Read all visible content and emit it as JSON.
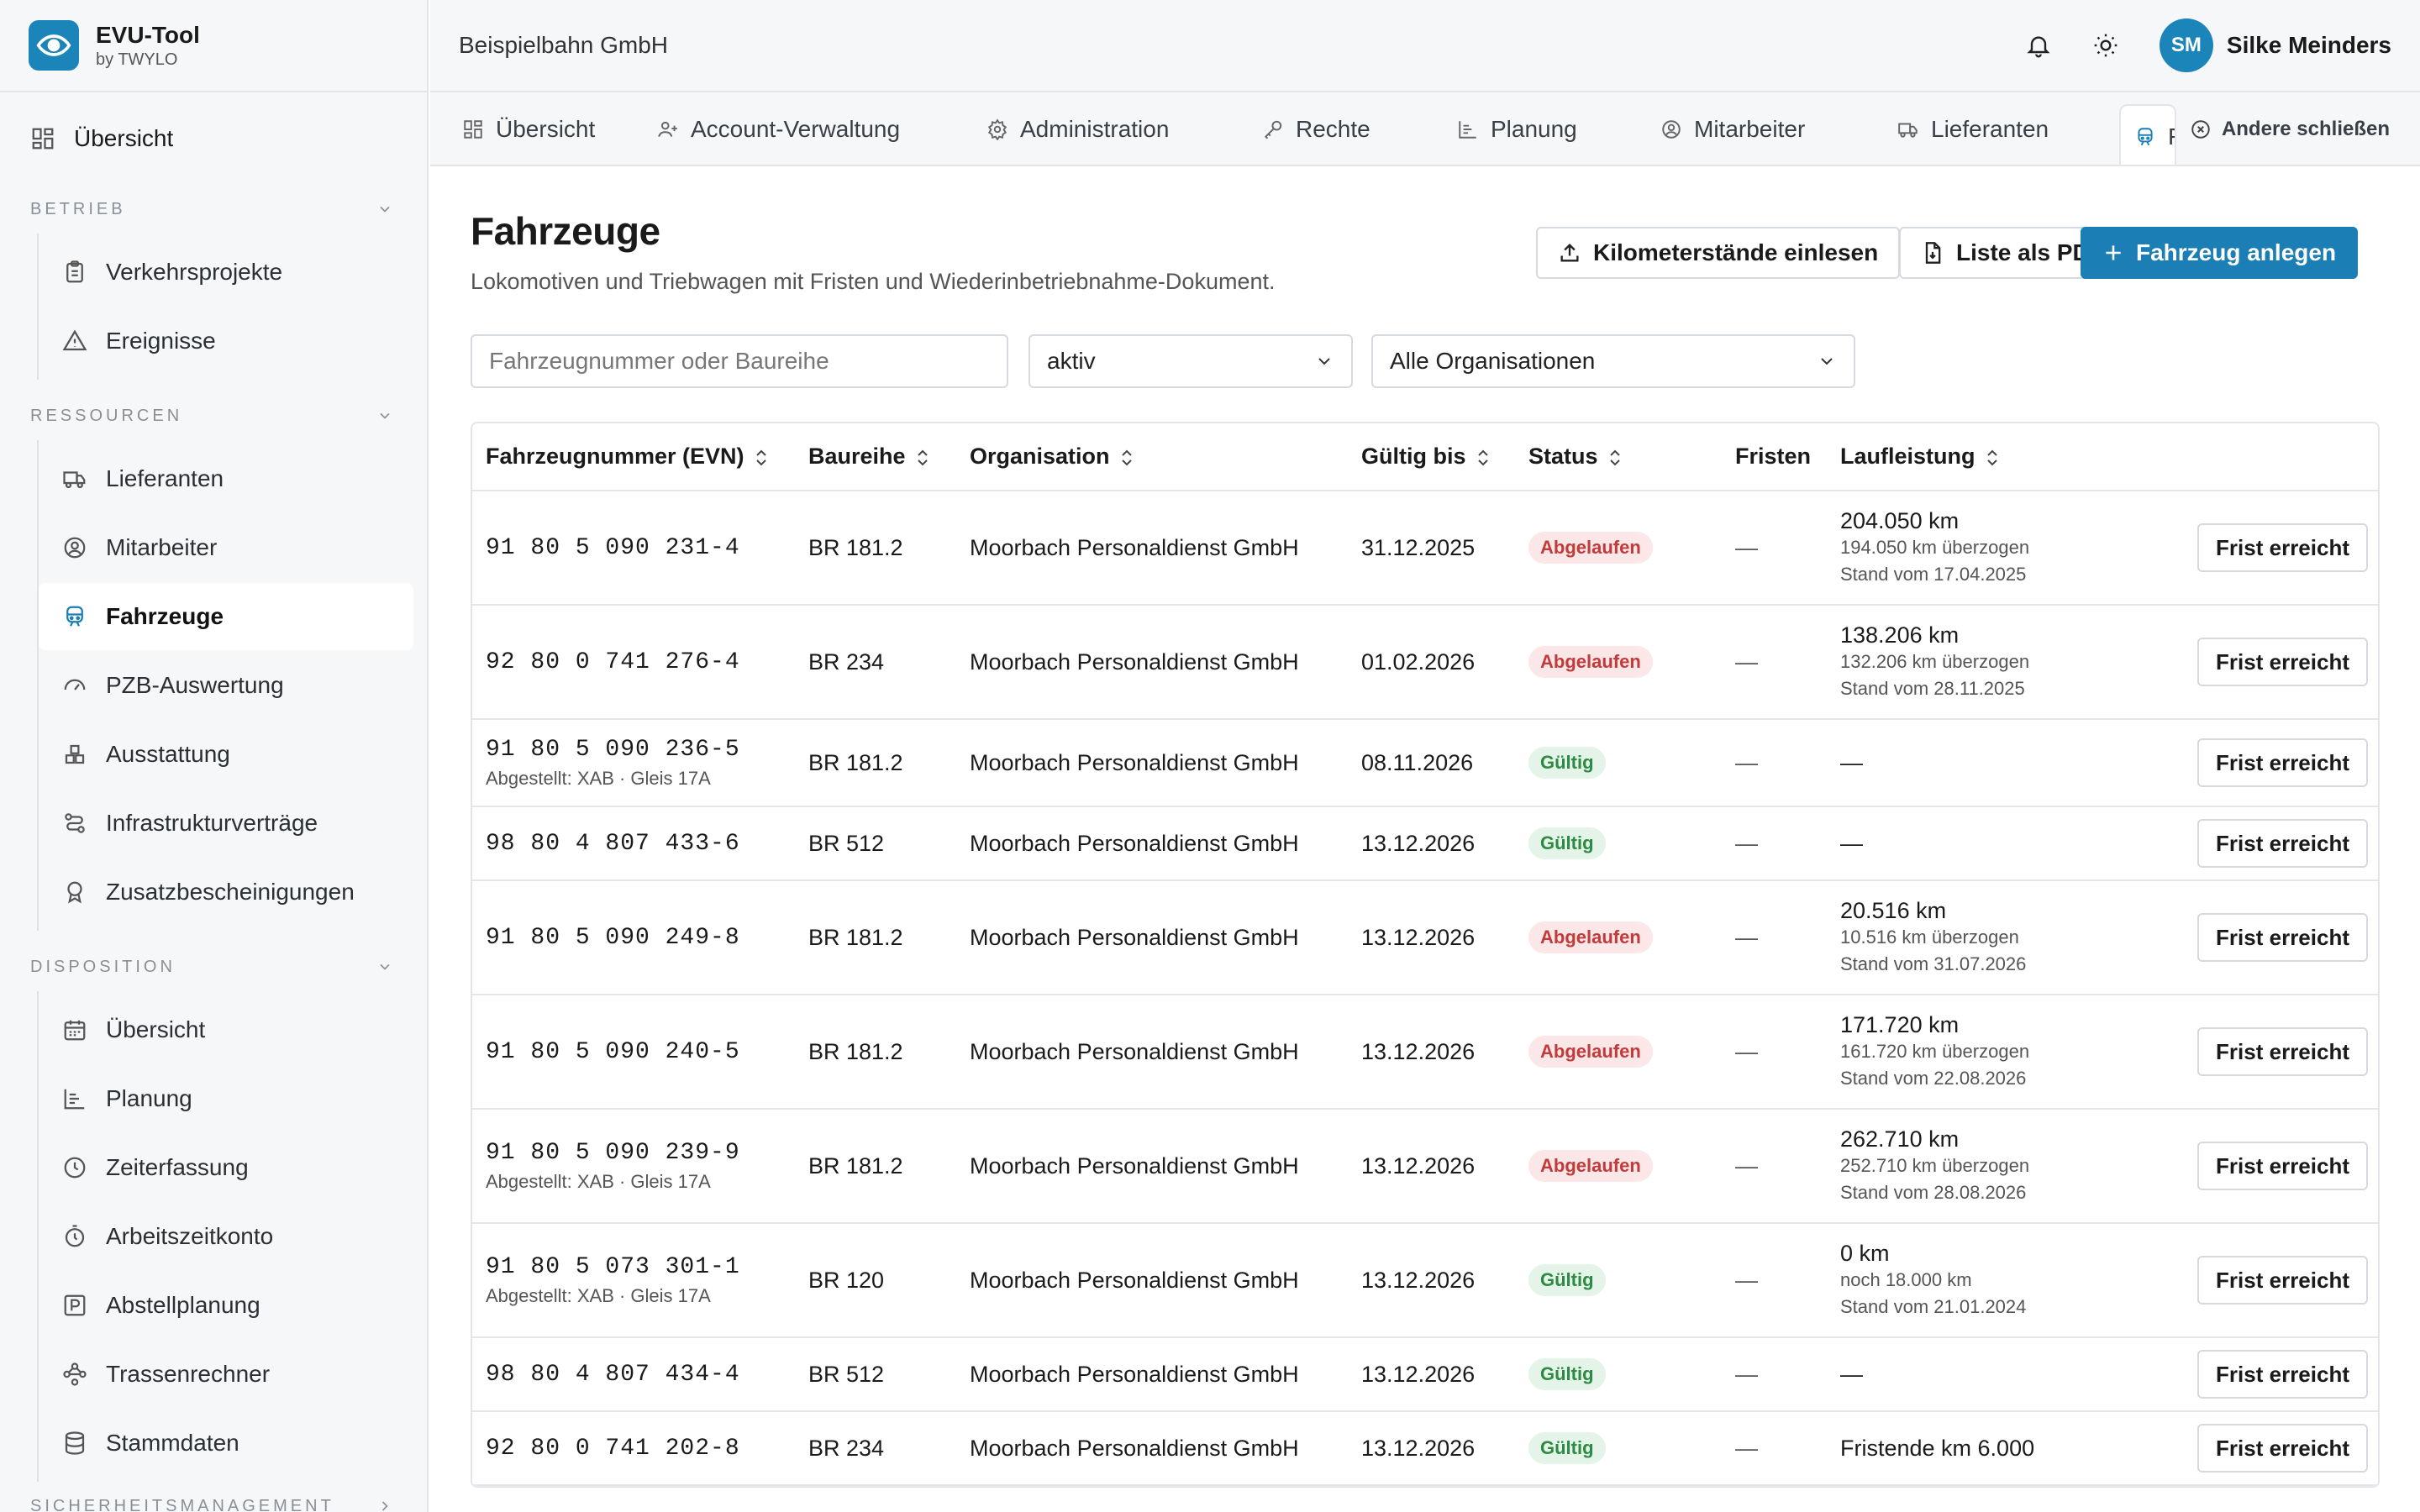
{
  "brand": {
    "name": "EVU-Tool",
    "sub": "by TWYLO"
  },
  "sidebar": {
    "top": {
      "label": "Übersicht"
    },
    "sections": [
      {
        "title": "Betrieb",
        "items": [
          {
            "label": "Verkehrsprojekte",
            "icon": "clipboard-icon"
          },
          {
            "label": "Ereignisse",
            "icon": "warning-icon"
          }
        ]
      },
      {
        "title": "Ressourcen",
        "items": [
          {
            "label": "Lieferanten",
            "icon": "truck-icon"
          },
          {
            "label": "Mitarbeiter",
            "icon": "user-circle-icon"
          },
          {
            "label": "Fahrzeuge",
            "icon": "train-icon"
          },
          {
            "label": "PZB-Auswertung",
            "icon": "gauge-icon"
          },
          {
            "label": "Ausstattung",
            "icon": "boxes-icon"
          },
          {
            "label": "Infrastrukturverträge",
            "icon": "route-icon"
          },
          {
            "label": "Zusatzbescheinigungen",
            "icon": "award-icon"
          }
        ]
      },
      {
        "title": "Disposition",
        "items": [
          {
            "label": "Übersicht",
            "icon": "calendar-icon"
          },
          {
            "label": "Planung",
            "icon": "gantt-icon"
          },
          {
            "label": "Zeiterfassung",
            "icon": "clock-icon"
          },
          {
            "label": "Arbeitszeitkonto",
            "icon": "timer-icon"
          },
          {
            "label": "Abstellplanung",
            "icon": "parking-icon"
          },
          {
            "label": "Trassenrechner",
            "icon": "waypoints-icon"
          },
          {
            "label": "Stammdaten",
            "icon": "database-icon"
          }
        ]
      },
      {
        "title": "Sicherheitsmanagement"
      }
    ]
  },
  "header": {
    "org": "Beispielbahn GmbH",
    "user_initials": "SM",
    "user_name": "Silke Meinders"
  },
  "tabs": [
    {
      "label": "Übersicht",
      "icon": "grid-icon"
    },
    {
      "label": "Account-Verwaltung",
      "icon": "users-icon"
    },
    {
      "label": "Administration",
      "icon": "gear-icon"
    },
    {
      "label": "Rechte",
      "icon": "key-icon"
    },
    {
      "label": "Planung",
      "icon": "gantt-icon"
    },
    {
      "label": "Mitarbeiter",
      "icon": "user-circle-icon"
    },
    {
      "label": "Lieferanten",
      "icon": "truck-icon"
    },
    {
      "label": "F",
      "icon": "train-icon"
    }
  ],
  "tabs_close_label": "Andere schließen",
  "page": {
    "title": "Fahrzeuge",
    "subtitle": "Lokomotiven und Triebwagen mit Fristen und Wiederinbetriebnahme-Dokument.",
    "btn_import": "Kilometerstände einlesen",
    "btn_pdf": "Liste als PDF",
    "btn_new": "Fahrzeug anlegen"
  },
  "filters": {
    "search_placeholder": "Fahrzeugnummer oder Baureihe",
    "status_value": "aktiv",
    "org_value": "Alle Organisationen"
  },
  "table": {
    "headers": {
      "evn": "Fahrzeugnummer (EVN)",
      "baureihe": "Baureihe",
      "org": "Organisation",
      "valid": "Gültig bis",
      "status": "Status",
      "fristen": "Fristen",
      "km": "Laufleistung"
    },
    "action_label": "Frist erreicht",
    "rows": [
      {
        "evn": "91 80 5 090 231-4",
        "note": "",
        "baureihe": "BR 181.2",
        "org": "Moorbach Personaldienst GmbH",
        "valid": "31.12.2025",
        "status": "Abgelaufen",
        "status_type": "expired",
        "fristen": "—",
        "km_main": "204.050 km",
        "km_sub1": "194.050 km überzogen",
        "km_sub2": "Stand vom 17.04.2025"
      },
      {
        "evn": "92 80 0 741 276-4",
        "note": "",
        "baureihe": "BR 234",
        "org": "Moorbach Personaldienst GmbH",
        "valid": "01.02.2026",
        "status": "Abgelaufen",
        "status_type": "expired",
        "fristen": "—",
        "km_main": "138.206 km",
        "km_sub1": "132.206 km überzogen",
        "km_sub2": "Stand vom 28.11.2025"
      },
      {
        "evn": "91 80 5 090 236-5",
        "note": "Abgestellt: XAB · Gleis 17A",
        "baureihe": "BR 181.2",
        "org": "Moorbach Personaldienst GmbH",
        "valid": "08.11.2026",
        "status": "Gültig",
        "status_type": "valid",
        "fristen": "—",
        "km_main": "—",
        "km_sub1": "",
        "km_sub2": ""
      },
      {
        "evn": "98 80 4 807 433-6",
        "note": "",
        "baureihe": "BR 512",
        "org": "Moorbach Personaldienst GmbH",
        "valid": "13.12.2026",
        "status": "Gültig",
        "status_type": "valid",
        "fristen": "—",
        "km_main": "—",
        "km_sub1": "",
        "km_sub2": ""
      },
      {
        "evn": "91 80 5 090 249-8",
        "note": "",
        "baureihe": "BR 181.2",
        "org": "Moorbach Personaldienst GmbH",
        "valid": "13.12.2026",
        "status": "Abgelaufen",
        "status_type": "expired",
        "fristen": "—",
        "km_main": "20.516 km",
        "km_sub1": "10.516 km überzogen",
        "km_sub2": "Stand vom 31.07.2026"
      },
      {
        "evn": "91 80 5 090 240-5",
        "note": "",
        "baureihe": "BR 181.2",
        "org": "Moorbach Personaldienst GmbH",
        "valid": "13.12.2026",
        "status": "Abgelaufen",
        "status_type": "expired",
        "fristen": "—",
        "km_main": "171.720 km",
        "km_sub1": "161.720 km überzogen",
        "km_sub2": "Stand vom 22.08.2026"
      },
      {
        "evn": "91 80 5 090 239-9",
        "note": "Abgestellt: XAB · Gleis 17A",
        "baureihe": "BR 181.2",
        "org": "Moorbach Personaldienst GmbH",
        "valid": "13.12.2026",
        "status": "Abgelaufen",
        "status_type": "expired",
        "fristen": "—",
        "km_main": "262.710 km",
        "km_sub1": "252.710 km überzogen",
        "km_sub2": "Stand vom 28.08.2026"
      },
      {
        "evn": "91 80 5 073 301-1",
        "note": "Abgestellt: XAB · Gleis 17A",
        "baureihe": "BR 120",
        "org": "Moorbach Personaldienst GmbH",
        "valid": "13.12.2026",
        "status": "Gültig",
        "status_type": "valid",
        "fristen": "—",
        "km_main": "0 km",
        "km_sub1": "noch 18.000 km",
        "km_sub2": "Stand vom 21.01.2024"
      },
      {
        "evn": "98 80 4 807 434-4",
        "note": "",
        "baureihe": "BR 512",
        "org": "Moorbach Personaldienst GmbH",
        "valid": "13.12.2026",
        "status": "Gültig",
        "status_type": "valid",
        "fristen": "—",
        "km_main": "—",
        "km_sub1": "",
        "km_sub2": ""
      },
      {
        "evn": "92 80 0 741 202-8",
        "note": "",
        "baureihe": "BR 234",
        "org": "Moorbach Personaldienst GmbH",
        "valid": "13.12.2026",
        "status": "Gültig",
        "status_type": "valid",
        "fristen": "—",
        "km_main": "Fristende km 6.000",
        "km_sub1": "",
        "km_sub2": ""
      }
    ]
  },
  "colors": {
    "accent": "#1b7fb5",
    "expired_text": "#c33a3a",
    "expired_bg": "#fbe7e7",
    "valid_text": "#2d8a45",
    "valid_bg": "#e5f4e8"
  }
}
